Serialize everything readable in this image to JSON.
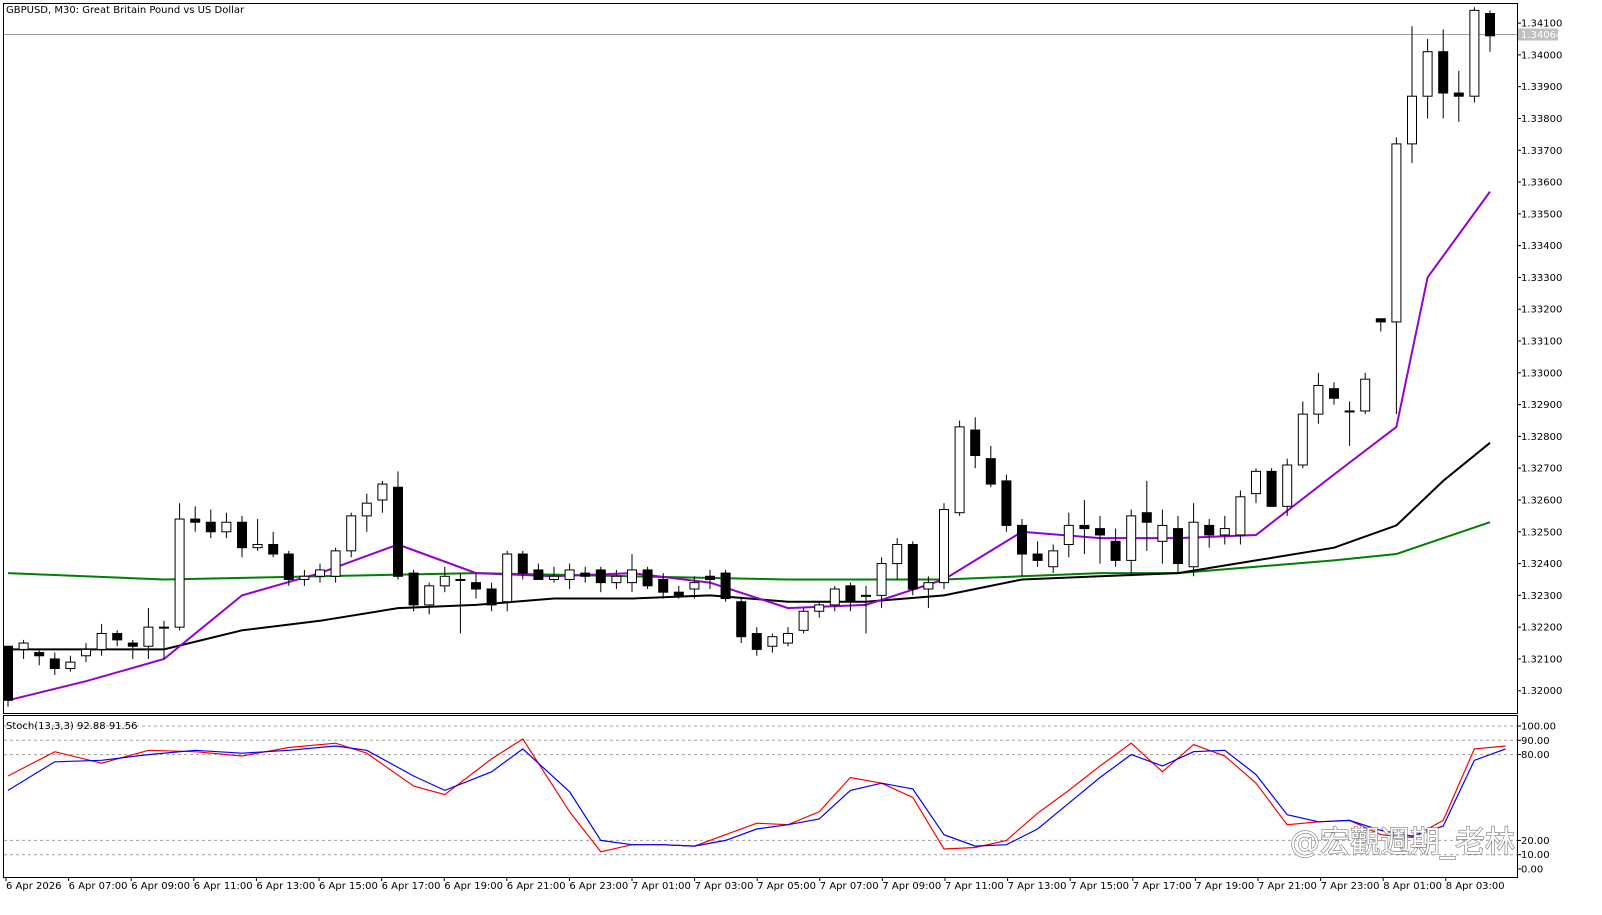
{
  "window": {
    "title": "GBPUSD, M30:  Great Britain Pound vs US Dollar",
    "current_price": "1.34064",
    "watermark": "@宏觀週期_老林"
  },
  "colors": {
    "bull_fill": "#ffffff",
    "bear_fill": "#000000",
    "ma_fast": "#9400d3",
    "ma_mid": "#000000",
    "ma_slow": "#008000",
    "stoch_main": "#ff0000",
    "stoch_signal": "#0000ff",
    "grid_dotted": "#a0a0a0"
  },
  "chart_data": [
    {
      "type": "candlestick",
      "title": "GBPUSD, M30:  Great Britain Pound vs US Dollar",
      "ylim": [
        1.3193,
        1.3416
      ],
      "y_ticks": [
        "1.34100",
        "1.34000",
        "1.33900",
        "1.33800",
        "1.33700",
        "1.33600",
        "1.33500",
        "1.33400",
        "1.33300",
        "1.33200",
        "1.33100",
        "1.33000",
        "1.32900",
        "1.32800",
        "1.32700",
        "1.32600",
        "1.32500",
        "1.32400",
        "1.32300",
        "1.32200",
        "1.32100",
        "1.32000"
      ],
      "x_labels": [
        "6 Apr 2026",
        "6 Apr 07:00",
        "6 Apr 09:00",
        "6 Apr 11:00",
        "6 Apr 13:00",
        "6 Apr 15:00",
        "6 Apr 17:00",
        "6 Apr 19:00",
        "6 Apr 21:00",
        "6 Apr 23:00",
        "7 Apr 01:00",
        "7 Apr 03:00",
        "7 Apr 05:00",
        "7 Apr 07:00",
        "7 Apr 09:00",
        "7 Apr 11:00",
        "7 Apr 13:00",
        "7 Apr 15:00",
        "7 Apr 17:00",
        "7 Apr 19:00",
        "7 Apr 21:00",
        "7 Apr 23:00",
        "8 Apr 01:00",
        "8 Apr 03:00"
      ],
      "candles": [
        [
          1.3214,
          1.3214,
          1.3195,
          1.3197
        ],
        [
          1.3213,
          1.3216,
          1.321,
          1.3215
        ],
        [
          1.3212,
          1.3213,
          1.3208,
          1.3211
        ],
        [
          1.321,
          1.3212,
          1.3205,
          1.3207
        ],
        [
          1.3207,
          1.3211,
          1.3206,
          1.3209
        ],
        [
          1.3211,
          1.3215,
          1.3209,
          1.3213
        ],
        [
          1.3213,
          1.3221,
          1.3211,
          1.3218
        ],
        [
          1.3218,
          1.3219,
          1.3214,
          1.3216
        ],
        [
          1.3215,
          1.3216,
          1.321,
          1.3214
        ],
        [
          1.3214,
          1.3226,
          1.321,
          1.322
        ],
        [
          1.322,
          1.3222,
          1.321,
          1.322
        ],
        [
          1.322,
          1.3259,
          1.3219,
          1.3254
        ],
        [
          1.3254,
          1.3258,
          1.325,
          1.3253
        ],
        [
          1.3253,
          1.3257,
          1.3248,
          1.325
        ],
        [
          1.325,
          1.3256,
          1.3248,
          1.3253
        ],
        [
          1.3253,
          1.3255,
          1.3242,
          1.3245
        ],
        [
          1.3245,
          1.3254,
          1.3244,
          1.3246
        ],
        [
          1.3246,
          1.325,
          1.3242,
          1.3243
        ],
        [
          1.3243,
          1.3244,
          1.3233,
          1.3235
        ],
        [
          1.3235,
          1.3238,
          1.3233,
          1.3236
        ],
        [
          1.3236,
          1.324,
          1.3234,
          1.3238
        ],
        [
          1.3236,
          1.3245,
          1.3234,
          1.3244
        ],
        [
          1.3244,
          1.3256,
          1.3242,
          1.3255
        ],
        [
          1.3255,
          1.3262,
          1.325,
          1.3259
        ],
        [
          1.326,
          1.3266,
          1.3256,
          1.3265
        ],
        [
          1.3264,
          1.3269,
          1.3235,
          1.3236
        ],
        [
          1.3237,
          1.3238,
          1.3225,
          1.3227
        ],
        [
          1.3227,
          1.3234,
          1.3224,
          1.3233
        ],
        [
          1.3233,
          1.3239,
          1.3231,
          1.3236
        ],
        [
          1.3235,
          1.3237,
          1.3218,
          1.3235
        ],
        [
          1.3234,
          1.3237,
          1.3229,
          1.3232
        ],
        [
          1.3232,
          1.3234,
          1.3225,
          1.3227
        ],
        [
          1.3228,
          1.3244,
          1.3225,
          1.3243
        ],
        [
          1.3243,
          1.3244,
          1.3235,
          1.3237
        ],
        [
          1.3238,
          1.324,
          1.3235,
          1.3235
        ],
        [
          1.3235,
          1.3239,
          1.3234,
          1.3236
        ],
        [
          1.3235,
          1.324,
          1.3232,
          1.3238
        ],
        [
          1.3237,
          1.3239,
          1.3234,
          1.3236
        ],
        [
          1.3238,
          1.3239,
          1.3231,
          1.3234
        ],
        [
          1.3234,
          1.3238,
          1.3232,
          1.3236
        ],
        [
          1.3234,
          1.3243,
          1.3231,
          1.3238
        ],
        [
          1.3238,
          1.3239,
          1.3232,
          1.3233
        ],
        [
          1.3235,
          1.3237,
          1.3229,
          1.3231
        ],
        [
          1.3231,
          1.3233,
          1.3229,
          1.323
        ],
        [
          1.3232,
          1.3236,
          1.3229,
          1.3234
        ],
        [
          1.3236,
          1.3238,
          1.3232,
          1.3235
        ],
        [
          1.3237,
          1.3238,
          1.3228,
          1.3229
        ],
        [
          1.3228,
          1.3229,
          1.3215,
          1.3217
        ],
        [
          1.3218,
          1.322,
          1.3211,
          1.3213
        ],
        [
          1.3214,
          1.3218,
          1.3212,
          1.3217
        ],
        [
          1.3215,
          1.322,
          1.3214,
          1.3218
        ],
        [
          1.3219,
          1.3226,
          1.3218,
          1.3225
        ],
        [
          1.3225,
          1.3228,
          1.3223,
          1.3227
        ],
        [
          1.3227,
          1.3233,
          1.3225,
          1.3232
        ],
        [
          1.3233,
          1.3234,
          1.3225,
          1.3228
        ],
        [
          1.323,
          1.3233,
          1.3218,
          1.323
        ],
        [
          1.323,
          1.3242,
          1.3226,
          1.324
        ],
        [
          1.324,
          1.3248,
          1.3235,
          1.3246
        ],
        [
          1.3246,
          1.3247,
          1.323,
          1.3232
        ],
        [
          1.3232,
          1.3236,
          1.3226,
          1.3234
        ],
        [
          1.3234,
          1.3259,
          1.3232,
          1.3257
        ],
        [
          1.3256,
          1.3285,
          1.3255,
          1.3283
        ],
        [
          1.3282,
          1.3286,
          1.327,
          1.3274
        ],
        [
          1.3273,
          1.3277,
          1.3264,
          1.3265
        ],
        [
          1.3266,
          1.3268,
          1.325,
          1.3252
        ],
        [
          1.3252,
          1.3254,
          1.3236,
          1.3243
        ],
        [
          1.3243,
          1.3247,
          1.3239,
          1.3241
        ],
        [
          1.3239,
          1.3246,
          1.3237,
          1.3244
        ],
        [
          1.3246,
          1.3256,
          1.3242,
          1.3252
        ],
        [
          1.3252,
          1.326,
          1.3243,
          1.3251
        ],
        [
          1.3251,
          1.3255,
          1.324,
          1.3249
        ],
        [
          1.3247,
          1.3251,
          1.3239,
          1.3241
        ],
        [
          1.3241,
          1.3257,
          1.3236,
          1.3255
        ],
        [
          1.3256,
          1.3266,
          1.3244,
          1.3253
        ],
        [
          1.3247,
          1.3257,
          1.324,
          1.3252
        ],
        [
          1.3251,
          1.3255,
          1.3237,
          1.324
        ],
        [
          1.3239,
          1.3259,
          1.3236,
          1.3253
        ],
        [
          1.3252,
          1.3254,
          1.3245,
          1.3249
        ],
        [
          1.3249,
          1.3255,
          1.3246,
          1.3251
        ],
        [
          1.3249,
          1.3263,
          1.3246,
          1.3261
        ],
        [
          1.3262,
          1.327,
          1.3259,
          1.3269
        ],
        [
          1.3269,
          1.327,
          1.3258,
          1.3258
        ],
        [
          1.3258,
          1.3273,
          1.3255,
          1.3271
        ],
        [
          1.3271,
          1.3291,
          1.327,
          1.3287
        ],
        [
          1.3287,
          1.33,
          1.3284,
          1.3296
        ],
        [
          1.3295,
          1.3297,
          1.329,
          1.3292
        ],
        [
          1.3288,
          1.3291,
          1.3277,
          1.3288
        ],
        [
          1.3288,
          1.33,
          1.3287,
          1.3298
        ],
        [
          1.3317,
          1.3317,
          1.3313,
          1.3316
        ],
        [
          1.3316,
          1.3374,
          1.3287,
          1.3372
        ],
        [
          1.3372,
          1.3409,
          1.3366,
          1.3387
        ],
        [
          1.3387,
          1.3405,
          1.338,
          1.3401
        ],
        [
          1.3401,
          1.3408,
          1.338,
          1.3388
        ],
        [
          1.3388,
          1.3395,
          1.3379,
          1.3387
        ],
        [
          1.3387,
          1.3415,
          1.3385,
          1.3414
        ],
        [
          1.3413,
          1.3414,
          1.3401,
          1.3406
        ]
      ],
      "ma_fast": [
        [
          0,
          1.3197
        ],
        [
          5,
          1.3203
        ],
        [
          10,
          1.321
        ],
        [
          15,
          1.323
        ],
        [
          20,
          1.3237
        ],
        [
          25,
          1.3246
        ],
        [
          30,
          1.3237
        ],
        [
          35,
          1.3236
        ],
        [
          40,
          1.3237
        ],
        [
          45,
          1.3234
        ],
        [
          50,
          1.3226
        ],
        [
          55,
          1.3227
        ],
        [
          60,
          1.3235
        ],
        [
          65,
          1.325
        ],
        [
          70,
          1.3248
        ],
        [
          75,
          1.3248
        ],
        [
          80,
          1.3249
        ],
        [
          85,
          1.3268
        ],
        [
          89,
          1.3283
        ],
        [
          91,
          1.333
        ],
        [
          95,
          1.3357
        ]
      ],
      "ma_mid": [
        [
          0,
          1.3213
        ],
        [
          5,
          1.3213
        ],
        [
          10,
          1.3213
        ],
        [
          15,
          1.3219
        ],
        [
          20,
          1.3222
        ],
        [
          25,
          1.3226
        ],
        [
          30,
          1.3227
        ],
        [
          35,
          1.3229
        ],
        [
          40,
          1.3229
        ],
        [
          45,
          1.323
        ],
        [
          50,
          1.3228
        ],
        [
          55,
          1.3228
        ],
        [
          60,
          1.323
        ],
        [
          65,
          1.3235
        ],
        [
          70,
          1.3236
        ],
        [
          75,
          1.3237
        ],
        [
          80,
          1.3241
        ],
        [
          85,
          1.3245
        ],
        [
          89,
          1.3252
        ],
        [
          92,
          1.3266
        ],
        [
          95,
          1.3278
        ]
      ],
      "ma_slow": [
        [
          0,
          1.3237
        ],
        [
          10,
          1.3235
        ],
        [
          20,
          1.3236
        ],
        [
          30,
          1.3237
        ],
        [
          40,
          1.3236
        ],
        [
          50,
          1.3235
        ],
        [
          60,
          1.3235
        ],
        [
          65,
          1.3236
        ],
        [
          70,
          1.3237
        ],
        [
          75,
          1.3237
        ],
        [
          80,
          1.3239
        ],
        [
          85,
          1.3241
        ],
        [
          89,
          1.3243
        ],
        [
          92,
          1.3248
        ],
        [
          95,
          1.3253
        ]
      ]
    },
    {
      "type": "line",
      "title": "Stoch(13,3,3) 92.88 91.56",
      "ylim": [
        0,
        100
      ],
      "y_ticks": [
        "100.00",
        "90.00",
        "80.00",
        "20.00",
        "10.00",
        "0.00"
      ],
      "levels": [
        20,
        80
      ],
      "series": [
        {
          "name": "main",
          "x": [
            0,
            3,
            6,
            9,
            12,
            15,
            18,
            21,
            23,
            26,
            28,
            31,
            33,
            36,
            38,
            40,
            42,
            44,
            46,
            48,
            50,
            52,
            54,
            56,
            58,
            60,
            62,
            64,
            66,
            68,
            70,
            72,
            74,
            76,
            78,
            80,
            82,
            84,
            86,
            88,
            90,
            92,
            94,
            96
          ],
          "values": [
            65,
            82,
            74,
            83,
            82,
            79,
            85,
            88,
            81,
            58,
            52,
            77,
            91,
            40,
            12,
            17,
            17,
            16,
            24,
            32,
            31,
            40,
            64,
            60,
            50,
            14,
            15,
            20,
            39,
            55,
            72,
            88,
            68,
            87,
            79,
            60,
            31,
            33,
            34,
            24,
            22,
            34,
            84,
            86
          ]
        },
        {
          "name": "signal",
          "x": [
            0,
            3,
            6,
            9,
            12,
            15,
            18,
            21,
            23,
            26,
            28,
            31,
            33,
            36,
            38,
            40,
            42,
            44,
            46,
            48,
            50,
            52,
            54,
            56,
            58,
            60,
            62,
            64,
            66,
            68,
            70,
            72,
            74,
            76,
            78,
            80,
            82,
            84,
            86,
            88,
            90,
            92,
            94,
            96
          ],
          "values": [
            55,
            75,
            76,
            80,
            83,
            81,
            83,
            86,
            83,
            65,
            55,
            68,
            84,
            54,
            20,
            17,
            17,
            16,
            20,
            28,
            31,
            35,
            55,
            60,
            56,
            24,
            16,
            17,
            28,
            46,
            64,
            80,
            72,
            82,
            83,
            66,
            38,
            33,
            34,
            27,
            23,
            30,
            76,
            84
          ]
        }
      ]
    }
  ]
}
